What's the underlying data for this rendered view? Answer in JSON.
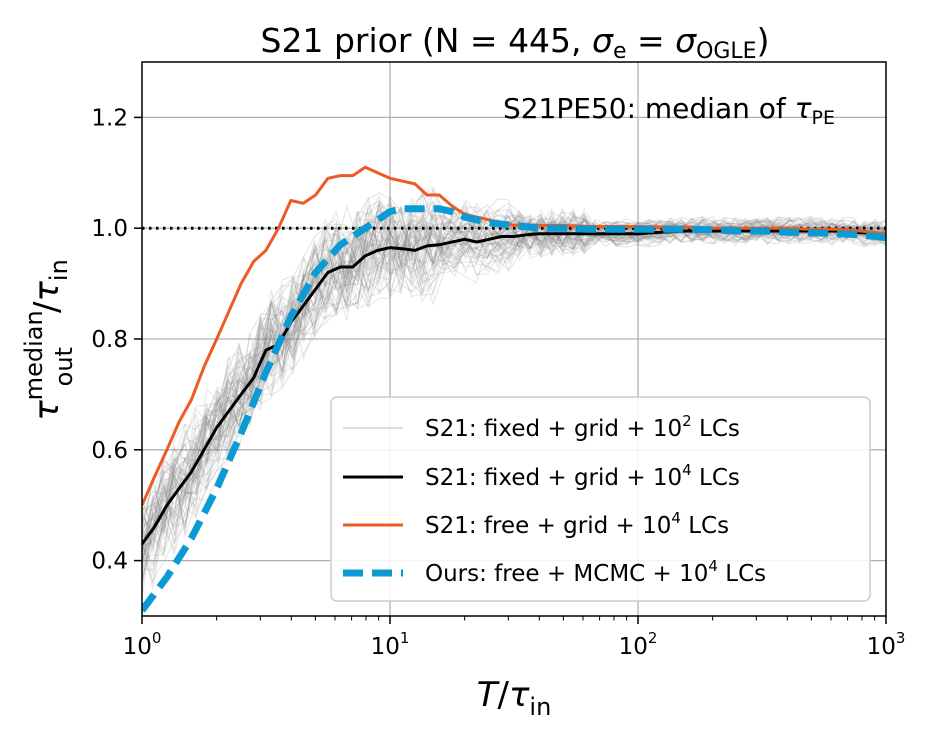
{
  "chart_data": {
    "type": "line",
    "title": {
      "prefix": "S21 prior (N = 445, ",
      "sigma": "σ",
      "e_sub": "e",
      "eq": " = ",
      "ogle_sub": "OGLE",
      "suffix": ")"
    },
    "annotation": {
      "text": "S21PE50: median of ",
      "tau": "τ",
      "sub": "PE"
    },
    "xlabel": {
      "T": "T",
      "slash": "/",
      "tau": "τ",
      "sub": "in"
    },
    "ylabel": {
      "tau": "τ",
      "sup": "median",
      "sub": "out",
      "slash": "/",
      "tau2": "τ",
      "sub2": "in"
    },
    "xscale": "log",
    "xlim": [
      1,
      1000
    ],
    "ylim": [
      0.3,
      1.3
    ],
    "x_ticks": [
      {
        "base": "10",
        "exp": "0",
        "value": 1
      },
      {
        "base": "10",
        "exp": "1",
        "value": 10
      },
      {
        "base": "10",
        "exp": "2",
        "value": 100
      },
      {
        "base": "10",
        "exp": "3",
        "value": 1000
      }
    ],
    "y_ticks": [
      {
        "label": "0.4",
        "value": 0.4
      },
      {
        "label": "0.6",
        "value": 0.6
      },
      {
        "label": "0.8",
        "value": 0.8
      },
      {
        "label": "1.0",
        "value": 1.0
      },
      {
        "label": "1.2",
        "value": 1.2
      }
    ],
    "reference_line": {
      "y": 1.0,
      "style": "dotted",
      "color": "#000000"
    },
    "grid": true,
    "legend_position": "lower-right",
    "legend": [
      {
        "id": "gray",
        "pre": "S21: fixed + grid + 10",
        "sup": "2",
        "post": " LCs",
        "color": "#b0b0b0",
        "style": "thin"
      },
      {
        "id": "black",
        "pre": "S21: fixed + grid + 10",
        "sup": "4",
        "post": " LCs",
        "color": "#000000",
        "style": "solid"
      },
      {
        "id": "orange",
        "pre": "S21: free + grid + 10",
        "sup": "4",
        "post": " LCs",
        "color": "#ee5a24",
        "style": "solid"
      },
      {
        "id": "blue",
        "pre": "Ours: free + MCMC + 10",
        "sup": "4",
        "post": " LCs",
        "color": "#0b9ad3",
        "style": "dashed"
      }
    ],
    "series": [
      {
        "name": "S21: fixed + grid + 10^4 LCs",
        "color": "#000000",
        "x": [
          1,
          1.12,
          1.26,
          1.41,
          1.58,
          1.78,
          2,
          2.24,
          2.51,
          2.82,
          3.16,
          3.55,
          3.98,
          4.47,
          5.01,
          5.62,
          6.31,
          7.08,
          7.94,
          8.91,
          10,
          11.2,
          12.6,
          14.1,
          15.8,
          17.8,
          20,
          22.4,
          25.1,
          28.2,
          31.6,
          35.5,
          39.8,
          50,
          63,
          79,
          100,
          126,
          158,
          200,
          251,
          316,
          398,
          501,
          631,
          794,
          1000
        ],
        "y": [
          0.43,
          0.46,
          0.5,
          0.53,
          0.56,
          0.6,
          0.64,
          0.67,
          0.7,
          0.73,
          0.78,
          0.79,
          0.83,
          0.86,
          0.89,
          0.92,
          0.93,
          0.93,
          0.95,
          0.96,
          0.965,
          0.963,
          0.96,
          0.968,
          0.97,
          0.975,
          0.98,
          0.975,
          0.98,
          0.985,
          0.985,
          0.988,
          0.99,
          0.99,
          0.99,
          0.99,
          0.99,
          0.993,
          0.995,
          0.995,
          0.995,
          0.995,
          0.995,
          0.995,
          0.995,
          0.992,
          0.99
        ]
      },
      {
        "name": "S21: free + grid + 10^4 LCs",
        "color": "#ee5a24",
        "x": [
          1,
          1.12,
          1.26,
          1.41,
          1.58,
          1.78,
          2,
          2.24,
          2.51,
          2.82,
          3.16,
          3.55,
          3.98,
          4.47,
          5.01,
          5.62,
          6.31,
          7.08,
          7.94,
          8.91,
          10,
          11.2,
          12.6,
          14.1,
          15.8,
          17.8,
          20,
          25.1,
          31.6,
          39.8,
          50,
          63,
          79,
          100,
          126,
          158,
          200,
          251,
          316,
          398,
          501,
          631,
          794,
          1000
        ],
        "y": [
          0.5,
          0.55,
          0.6,
          0.65,
          0.69,
          0.75,
          0.8,
          0.85,
          0.9,
          0.94,
          0.96,
          1.0,
          1.05,
          1.045,
          1.06,
          1.09,
          1.095,
          1.095,
          1.11,
          1.1,
          1.09,
          1.085,
          1.08,
          1.06,
          1.06,
          1.04,
          1.025,
          1.015,
          1.005,
          1.005,
          1.005,
          1.003,
          1.003,
          1.003,
          1.002,
          1.002,
          1.0,
          1.0,
          1.0,
          1.0,
          0.998,
          0.998,
          0.995,
          0.99
        ]
      },
      {
        "name": "Ours: free + MCMC + 10^4 LCs",
        "color": "#0b9ad3",
        "x": [
          1,
          1.26,
          1.58,
          2,
          2.51,
          3.16,
          3.98,
          5.01,
          6.31,
          7.94,
          10,
          11.2,
          12.6,
          14.1,
          15.8,
          17.8,
          20,
          25.1,
          31.6,
          39.8,
          50,
          63,
          79,
          100,
          126,
          158,
          200,
          251,
          316,
          398,
          501,
          631,
          794,
          1000
        ],
        "y": [
          0.31,
          0.37,
          0.44,
          0.53,
          0.63,
          0.74,
          0.84,
          0.92,
          0.97,
          1.0,
          1.03,
          1.035,
          1.035,
          1.035,
          1.035,
          1.03,
          1.02,
          1.01,
          1.005,
          1.0,
          1.0,
          0.998,
          0.998,
          0.998,
          0.998,
          0.998,
          0.997,
          0.995,
          0.995,
          0.993,
          0.992,
          0.99,
          0.988,
          0.983
        ]
      }
    ],
    "gray_ensemble": {
      "name": "S21: fixed + grid + 10^2 LCs",
      "count": 60,
      "color": "#808080",
      "opacity": 0.18,
      "description_center": "follows black curve with scatter up to about ±0.1 near T/τin≈5–10 and ±0.02 at large T/τin"
    }
  }
}
